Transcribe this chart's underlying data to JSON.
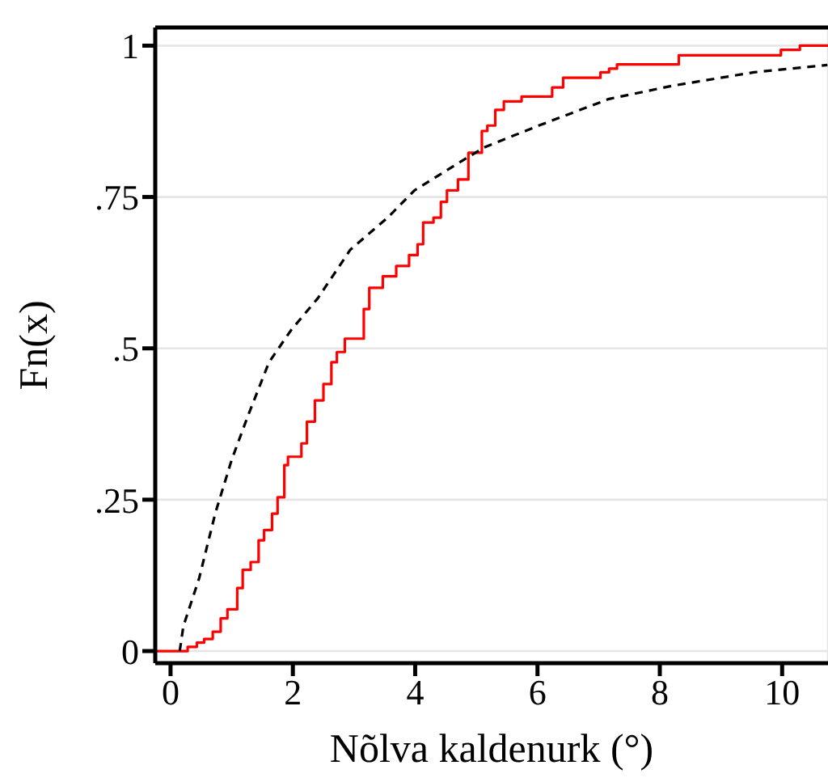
{
  "chart_data": {
    "type": "step",
    "xlabel": "Nõlva kaldenurk (°)",
    "ylabel": "Fn(x)",
    "xlim": [
      -0.25,
      10.75
    ],
    "xticks": [
      0,
      2,
      4,
      6,
      8,
      10
    ],
    "ylim": [
      -0.02,
      1.03
    ],
    "yticks": [
      {
        "value": 0,
        "label": "0"
      },
      {
        "value": 0.25,
        "label": ".25"
      },
      {
        "value": 0.5,
        "label": ".5"
      },
      {
        "value": 0.75,
        "label": ".75"
      },
      {
        "value": 1,
        "label": "1"
      }
    ],
    "grid": true,
    "legend": false,
    "series": [
      {
        "type": "step",
        "color": "#ff0000",
        "x": [
          -0.25,
          0.28,
          0.43,
          0.55,
          0.69,
          0.82,
          0.93,
          1.09,
          1.18,
          1.31,
          1.44,
          1.53,
          1.66,
          1.75,
          1.86,
          1.92,
          2.14,
          2.23,
          2.36,
          2.5,
          2.63,
          2.72,
          2.85,
          3.16,
          3.25,
          3.47,
          3.69,
          3.9,
          4.04,
          4.13,
          4.3,
          4.42,
          4.52,
          4.7,
          4.87,
          5.09,
          5.18,
          5.31,
          5.45,
          5.74,
          6.24,
          6.42,
          7.03,
          7.17,
          7.3,
          8.31,
          9.98,
          10.29,
          10.75
        ],
        "values": [
          0,
          0.007,
          0.014,
          0.02,
          0.032,
          0.054,
          0.069,
          0.104,
          0.134,
          0.147,
          0.183,
          0.2,
          0.227,
          0.254,
          0.307,
          0.321,
          0.343,
          0.379,
          0.414,
          0.441,
          0.477,
          0.494,
          0.516,
          0.565,
          0.6,
          0.619,
          0.636,
          0.654,
          0.672,
          0.708,
          0.716,
          0.742,
          0.761,
          0.779,
          0.823,
          0.859,
          0.868,
          0.894,
          0.908,
          0.916,
          0.931,
          0.947,
          0.956,
          0.962,
          0.969,
          0.984,
          0.993,
          1.0,
          1.0
        ]
      },
      {
        "type": "line",
        "color": "#000000",
        "line_style": "dashed",
        "x": [
          0.15,
          0.21,
          0.47,
          0.73,
          1.0,
          1.26,
          1.61,
          1.97,
          2.41,
          2.94,
          3.55,
          3.99,
          4.69,
          5.13,
          6.02,
          7.17,
          8.22,
          9.54,
          10.74
        ],
        "values": [
          0,
          0.041,
          0.121,
          0.227,
          0.316,
          0.387,
          0.477,
          0.53,
          0.583,
          0.663,
          0.716,
          0.761,
          0.805,
          0.832,
          0.868,
          0.912,
          0.934,
          0.956,
          0.968
        ]
      }
    ]
  }
}
